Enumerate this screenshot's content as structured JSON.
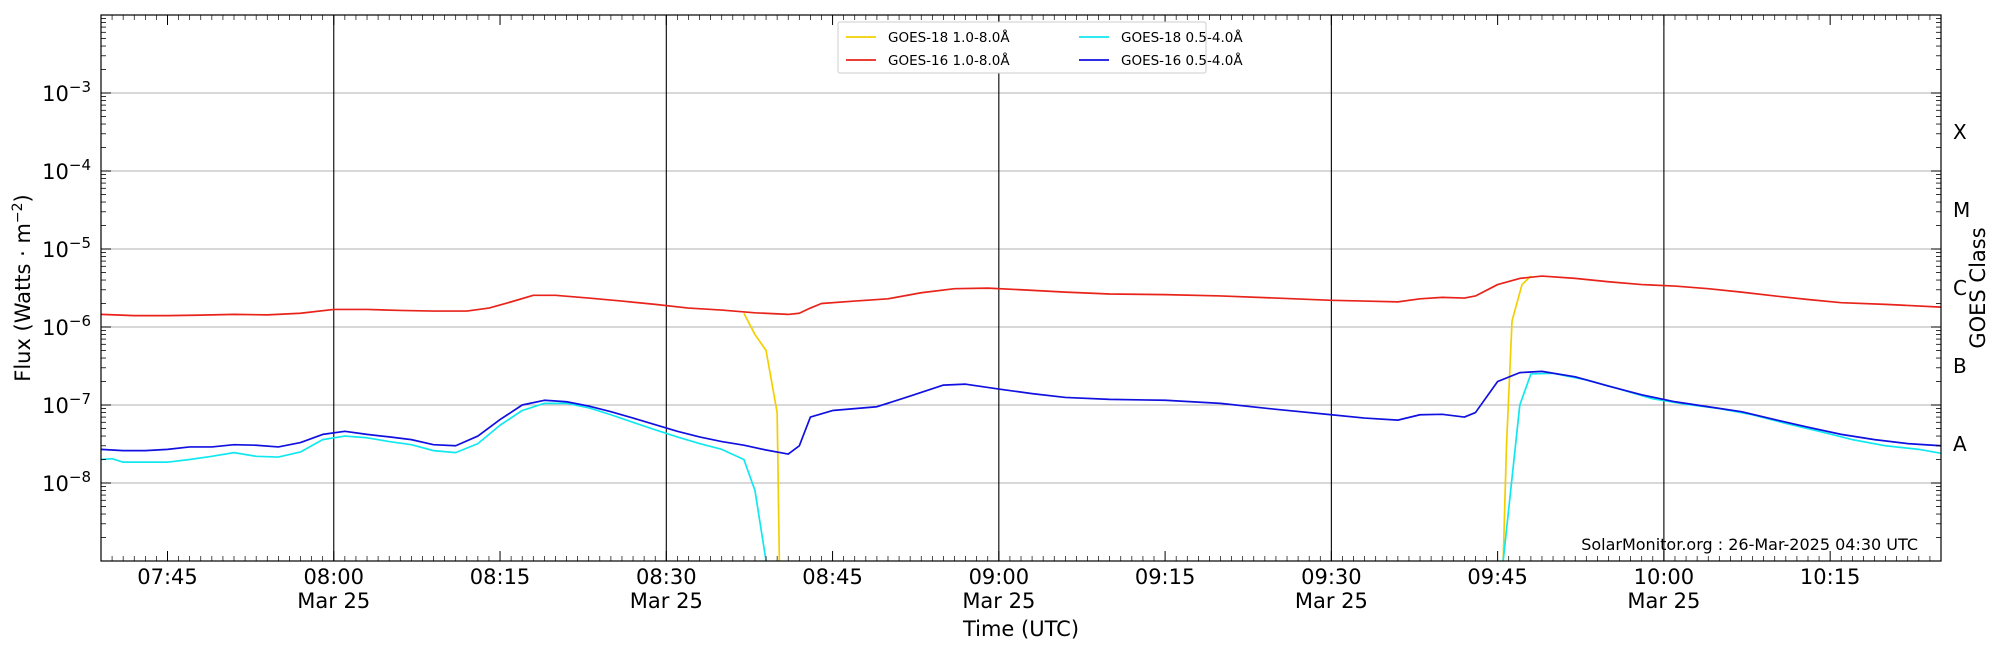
{
  "chart_data": {
    "type": "line",
    "xlabel": "Time (UTC)",
    "ylabel": "Flux (Watts · m",
    "ylabel_sup": "−2",
    "ylabel_close": ")",
    "right_ylabel": "GOES Class",
    "y_scale": "log",
    "ylim": [
      1e-09,
      0.01
    ],
    "xlim": [
      "07:39",
      "10:25"
    ],
    "x_ticks": [
      {
        "t": "07:45",
        "date": ""
      },
      {
        "t": "08:00",
        "date": "Mar 25"
      },
      {
        "t": "08:15",
        "date": ""
      },
      {
        "t": "08:30",
        "date": "Mar 25"
      },
      {
        "t": "08:45",
        "date": ""
      },
      {
        "t": "09:00",
        "date": "Mar 25"
      },
      {
        "t": "09:15",
        "date": ""
      },
      {
        "t": "09:30",
        "date": "Mar 25"
      },
      {
        "t": "09:45",
        "date": ""
      },
      {
        "t": "10:00",
        "date": "Mar 25"
      },
      {
        "t": "10:15",
        "date": ""
      }
    ],
    "vertical_lines": [
      "08:00",
      "08:30",
      "09:00",
      "09:30",
      "10:00"
    ],
    "y_ticks": [
      {
        "v": 1e-08,
        "base": "10",
        "exp": "−8"
      },
      {
        "v": 1e-07,
        "base": "10",
        "exp": "−7"
      },
      {
        "v": 1e-06,
        "base": "10",
        "exp": "−6"
      },
      {
        "v": 1e-05,
        "base": "10",
        "exp": "−5"
      },
      {
        "v": 0.0001,
        "base": "10",
        "exp": "−4"
      },
      {
        "v": 0.001,
        "base": "10",
        "exp": "−3"
      }
    ],
    "goes_classes": [
      {
        "label": "A",
        "v": 3.16e-08
      },
      {
        "label": "B",
        "v": 3.16e-07
      },
      {
        "label": "C",
        "v": 3.16e-06
      },
      {
        "label": "M",
        "v": 3.16e-05
      },
      {
        "label": "X",
        "v": 0.000316
      }
    ],
    "grid": {
      "horizontal": true,
      "vertical": false
    },
    "legend_position": "top-center",
    "footer": "SolarMonitor.org : 26-Mar-2025 04:30 UTC",
    "series": [
      {
        "name": "GOES-18 1.0-8.0Å",
        "color": "#f2d000",
        "points": [
          [
            "08:37",
            1.5e-06
          ],
          [
            "08:38",
            8e-07
          ],
          [
            "08:39",
            5e-07
          ],
          [
            "08:40",
            8e-08
          ],
          [
            "08:40.2",
            1e-09
          ]
        ]
      },
      {
        "name": "GOES-18 1.0-8.0Å",
        "color": "#f2d000",
        "points": [
          [
            "09:45.5",
            1e-09
          ],
          [
            "09:45.8",
            3e-08
          ],
          [
            "09:46.3",
            1.2e-06
          ],
          [
            "09:47.2",
            3.5e-06
          ],
          [
            "09:48",
            4.5e-06
          ]
        ]
      },
      {
        "name": "GOES-16 1.0-8.0Å",
        "color": "#e8231a",
        "points": [
          [
            "07:39",
            1.45e-06
          ],
          [
            "07:42",
            1.4e-06
          ],
          [
            "07:45",
            1.4e-06
          ],
          [
            "07:48",
            1.42e-06
          ],
          [
            "07:51",
            1.45e-06
          ],
          [
            "07:54",
            1.43e-06
          ],
          [
            "07:57",
            1.5e-06
          ],
          [
            "08:00",
            1.68e-06
          ],
          [
            "08:03",
            1.68e-06
          ],
          [
            "08:06",
            1.63e-06
          ],
          [
            "08:09",
            1.6e-06
          ],
          [
            "08:12",
            1.6e-06
          ],
          [
            "08:14",
            1.75e-06
          ],
          [
            "08:16",
            2.1e-06
          ],
          [
            "08:18",
            2.55e-06
          ],
          [
            "08:20",
            2.55e-06
          ],
          [
            "08:23",
            2.35e-06
          ],
          [
            "08:26",
            2.15e-06
          ],
          [
            "08:29",
            1.95e-06
          ],
          [
            "08:32",
            1.75e-06
          ],
          [
            "08:35",
            1.65e-06
          ],
          [
            "08:38",
            1.52e-06
          ],
          [
            "08:41",
            1.45e-06
          ],
          [
            "08:42",
            1.5e-06
          ],
          [
            "08:43",
            1.75e-06
          ],
          [
            "08:44",
            2e-06
          ],
          [
            "08:47",
            2.15e-06
          ],
          [
            "08:50",
            2.3e-06
          ],
          [
            "08:53",
            2.75e-06
          ],
          [
            "08:56",
            3.1e-06
          ],
          [
            "08:59",
            3.15e-06
          ],
          [
            "09:02",
            3e-06
          ],
          [
            "09:06",
            2.8e-06
          ],
          [
            "09:10",
            2.65e-06
          ],
          [
            "09:15",
            2.6e-06
          ],
          [
            "09:20",
            2.5e-06
          ],
          [
            "09:25",
            2.35e-06
          ],
          [
            "09:30",
            2.2e-06
          ],
          [
            "09:33",
            2.15e-06
          ],
          [
            "09:36",
            2.1e-06
          ],
          [
            "09:38",
            2.3e-06
          ],
          [
            "09:40",
            2.4e-06
          ],
          [
            "09:42",
            2.35e-06
          ],
          [
            "09:43",
            2.5e-06
          ],
          [
            "09:45",
            3.5e-06
          ],
          [
            "09:47",
            4.2e-06
          ],
          [
            "09:49",
            4.5e-06
          ],
          [
            "09:52",
            4.2e-06
          ],
          [
            "09:55",
            3.8e-06
          ],
          [
            "09:58",
            3.5e-06
          ],
          [
            "10:01",
            3.35e-06
          ],
          [
            "10:04",
            3.1e-06
          ],
          [
            "10:07",
            2.8e-06
          ],
          [
            "10:10",
            2.5e-06
          ],
          [
            "10:13",
            2.25e-06
          ],
          [
            "10:16",
            2.05e-06
          ],
          [
            "10:20",
            1.95e-06
          ],
          [
            "10:25",
            1.8e-06
          ]
        ]
      },
      {
        "name": "GOES-18 0.5-4.0Å",
        "color": "#10e8f0",
        "points": [
          [
            "07:39",
            2e-08
          ],
          [
            "07:40",
            2.05e-08
          ],
          [
            "07:41",
            1.85e-08
          ],
          [
            "07:43",
            1.85e-08
          ],
          [
            "07:45",
            1.85e-08
          ],
          [
            "07:47",
            2e-08
          ],
          [
            "07:49",
            2.2e-08
          ],
          [
            "07:51",
            2.45e-08
          ],
          [
            "07:53",
            2.2e-08
          ],
          [
            "07:55",
            2.15e-08
          ],
          [
            "07:57",
            2.5e-08
          ],
          [
            "07:59",
            3.6e-08
          ],
          [
            "08:01",
            4e-08
          ],
          [
            "08:03",
            3.8e-08
          ],
          [
            "08:05",
            3.4e-08
          ],
          [
            "08:07",
            3.1e-08
          ],
          [
            "08:09",
            2.6e-08
          ],
          [
            "08:11",
            2.45e-08
          ],
          [
            "08:13",
            3.2e-08
          ],
          [
            "08:15",
            5.5e-08
          ],
          [
            "08:17",
            8.5e-08
          ],
          [
            "08:19",
            1.05e-07
          ],
          [
            "08:21",
            1.05e-07
          ],
          [
            "08:23",
            9.2e-08
          ],
          [
            "08:25",
            7.5e-08
          ],
          [
            "08:27",
            6e-08
          ],
          [
            "08:29",
            4.8e-08
          ],
          [
            "08:31",
            3.9e-08
          ],
          [
            "08:33",
            3.2e-08
          ],
          [
            "08:35",
            2.7e-08
          ],
          [
            "08:37",
            2e-08
          ],
          [
            "08:38",
            8e-09
          ],
          [
            "08:39",
            1e-09
          ]
        ]
      },
      {
        "name": "GOES-18 0.5-4.0Å",
        "color": "#10e8f0",
        "points": [
          [
            "09:45.5",
            1e-09
          ],
          [
            "09:47",
            1e-07
          ],
          [
            "09:48",
            2.5e-07
          ],
          [
            "09:50",
            2.55e-07
          ],
          [
            "09:53",
            2.1e-07
          ],
          [
            "09:56",
            1.6e-07
          ],
          [
            "09:59",
            1.2e-07
          ],
          [
            "10:02",
            1.02e-07
          ],
          [
            "10:05",
            9e-08
          ],
          [
            "10:08",
            7.5e-08
          ],
          [
            "10:11",
            5.8e-08
          ],
          [
            "10:14",
            4.6e-08
          ],
          [
            "10:17",
            3.6e-08
          ],
          [
            "10:20",
            3e-08
          ],
          [
            "10:23",
            2.7e-08
          ],
          [
            "10:25",
            2.4e-08
          ]
        ]
      },
      {
        "name": "GOES-16 0.5-4.0Å",
        "color": "#1010e0",
        "points": [
          [
            "07:39",
            2.7e-08
          ],
          [
            "07:41",
            2.6e-08
          ],
          [
            "07:43",
            2.6e-08
          ],
          [
            "07:45",
            2.7e-08
          ],
          [
            "07:47",
            2.9e-08
          ],
          [
            "07:49",
            2.9e-08
          ],
          [
            "07:51",
            3.1e-08
          ],
          [
            "07:53",
            3.05e-08
          ],
          [
            "07:55",
            2.9e-08
          ],
          [
            "07:57",
            3.3e-08
          ],
          [
            "07:59",
            4.2e-08
          ],
          [
            "08:01",
            4.6e-08
          ],
          [
            "08:03",
            4.2e-08
          ],
          [
            "08:05",
            3.9e-08
          ],
          [
            "08:07",
            3.6e-08
          ],
          [
            "08:09",
            3.1e-08
          ],
          [
            "08:11",
            3e-08
          ],
          [
            "08:13",
            4e-08
          ],
          [
            "08:15",
            6.5e-08
          ],
          [
            "08:17",
            1e-07
          ],
          [
            "08:19",
            1.15e-07
          ],
          [
            "08:21",
            1.1e-07
          ],
          [
            "08:23",
            9.7e-08
          ],
          [
            "08:25",
            8.2e-08
          ],
          [
            "08:27",
            6.8e-08
          ],
          [
            "08:29",
            5.6e-08
          ],
          [
            "08:31",
            4.6e-08
          ],
          [
            "08:33",
            3.9e-08
          ],
          [
            "08:35",
            3.4e-08
          ],
          [
            "08:37",
            3.05e-08
          ],
          [
            "08:39",
            2.65e-08
          ],
          [
            "08:41",
            2.35e-08
          ],
          [
            "08:42",
            3e-08
          ],
          [
            "08:43",
            7e-08
          ],
          [
            "08:45",
            8.5e-08
          ],
          [
            "08:49",
            9.5e-08
          ],
          [
            "08:52",
            1.3e-07
          ],
          [
            "08:55",
            1.8e-07
          ],
          [
            "08:57",
            1.85e-07
          ],
          [
            "09:00",
            1.6e-07
          ],
          [
            "09:03",
            1.4e-07
          ],
          [
            "09:06",
            1.25e-07
          ],
          [
            "09:10",
            1.18e-07
          ],
          [
            "09:15",
            1.15e-07
          ],
          [
            "09:20",
            1.05e-07
          ],
          [
            "09:25",
            8.8e-08
          ],
          [
            "09:30",
            7.5e-08
          ],
          [
            "09:33",
            6.8e-08
          ],
          [
            "09:36",
            6.4e-08
          ],
          [
            "09:38",
            7.5e-08
          ],
          [
            "09:40",
            7.6e-08
          ],
          [
            "09:42",
            7e-08
          ],
          [
            "09:43",
            8e-08
          ],
          [
            "09:45",
            2e-07
          ],
          [
            "09:47",
            2.6e-07
          ],
          [
            "09:49",
            2.7e-07
          ],
          [
            "09:52",
            2.3e-07
          ],
          [
            "09:55",
            1.75e-07
          ],
          [
            "09:58",
            1.35e-07
          ],
          [
            "10:01",
            1.1e-07
          ],
          [
            "10:04",
            9.5e-08
          ],
          [
            "10:07",
            8.2e-08
          ],
          [
            "10:10",
            6.5e-08
          ],
          [
            "10:13",
            5.2e-08
          ],
          [
            "10:16",
            4.2e-08
          ],
          [
            "10:19",
            3.6e-08
          ],
          [
            "10:22",
            3.2e-08
          ],
          [
            "10:25",
            3e-08
          ]
        ]
      }
    ],
    "legend": [
      {
        "label": "GOES-18 1.0-8.0Å",
        "color": "#f2d000"
      },
      {
        "label": "GOES-16 1.0-8.0Å",
        "color": "#e8231a"
      },
      {
        "label": "GOES-18 0.5-4.0Å",
        "color": "#10e8f0"
      },
      {
        "label": "GOES-16 0.5-4.0Å",
        "color": "#1010e0"
      }
    ]
  }
}
